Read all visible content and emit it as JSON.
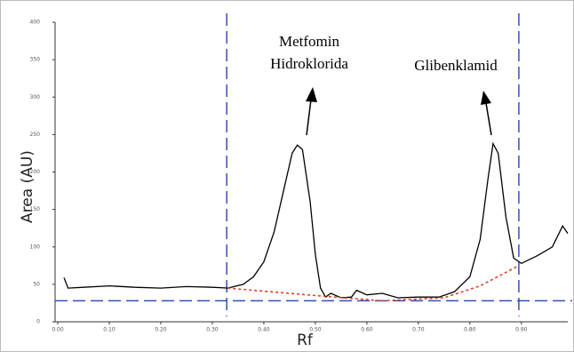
{
  "chart_data": {
    "type": "line",
    "x_label": "Rf",
    "y_label": "Area (AU)",
    "xlim": [
      0,
      0.99
    ],
    "ylim": [
      0,
      400
    ],
    "xticks": [
      {
        "value": 0,
        "label": "0.00"
      },
      {
        "value": 0.1,
        "label": "0.10"
      },
      {
        "value": 0.2,
        "label": "0.20"
      },
      {
        "value": 0.3,
        "label": "0.30"
      },
      {
        "value": 0.4,
        "label": "0.40"
      },
      {
        "value": 0.5,
        "label": "0.50"
      },
      {
        "value": 0.6,
        "label": "0.60"
      },
      {
        "value": 0.7,
        "label": "0.70"
      },
      {
        "value": 0.8,
        "label": "0.80"
      },
      {
        "value": 0.9,
        "label": "0.90"
      }
    ],
    "yticks": [
      0,
      50,
      100,
      150,
      200,
      250,
      300,
      350,
      400
    ],
    "series": [
      {
        "color": "#000000",
        "x": [
          0.012,
          0.02,
          0.05,
          0.1,
          0.15,
          0.2,
          0.25,
          0.3,
          0.33,
          0.36,
          0.38,
          0.4,
          0.42,
          0.44,
          0.455,
          0.465,
          0.475,
          0.49,
          0.5,
          0.51,
          0.52,
          0.53,
          0.55,
          0.57,
          0.58,
          0.6,
          0.63,
          0.66,
          0.7,
          0.74,
          0.77,
          0.8,
          0.82,
          0.835,
          0.845,
          0.855,
          0.87,
          0.885,
          0.9,
          0.93,
          0.96,
          0.98,
          0.99
        ],
        "values": [
          59,
          45,
          46,
          48,
          46,
          45,
          47,
          46,
          45,
          50,
          60,
          80,
          120,
          180,
          225,
          236,
          230,
          160,
          90,
          45,
          33,
          38,
          32,
          33,
          42,
          36,
          38,
          32,
          33,
          33,
          40,
          60,
          110,
          190,
          238,
          225,
          140,
          85,
          78,
          88,
          100,
          128,
          118
        ]
      },
      {
        "color": "#e03a2a",
        "dashed": true,
        "x": [
          0.33,
          0.5,
          0.63,
          0.75,
          0.82,
          0.895
        ],
        "values": [
          45,
          35,
          28,
          32,
          48,
          75
        ]
      }
    ],
    "vlines": [
      0.328,
      0.895
    ],
    "hline": 28,
    "ref_color": "#3b4cb3",
    "annotations": [
      "Metfomin",
      "Hidroklorida",
      "Glibenklamid"
    ]
  }
}
